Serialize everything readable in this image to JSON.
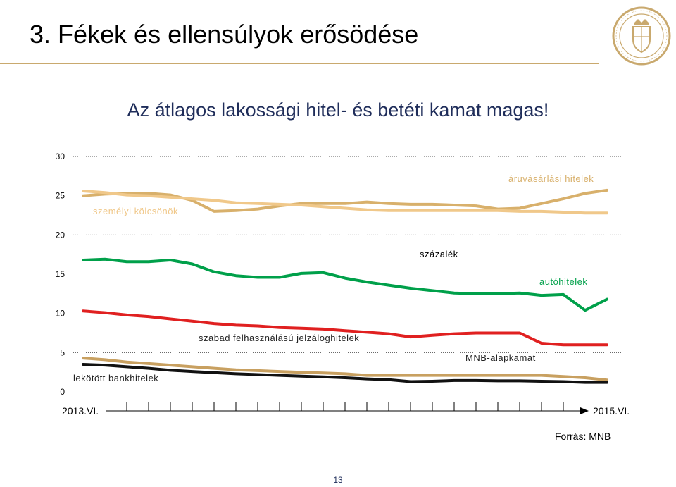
{
  "slide": {
    "title": "3. Fékek és ellensúlyok erősödése",
    "subtitle": "Az átlagos lakossági hitel- és betéti kamat magas!",
    "source": "Forrás: MNB",
    "page_number": "13"
  },
  "logo": {
    "icon": "mnb-seal-icon",
    "color": "#c9a96e"
  },
  "chart_data": {
    "type": "line",
    "ylim": [
      0,
      30
    ],
    "yticks": [
      0,
      5,
      10,
      15,
      20,
      25,
      30
    ],
    "y_unit_label": "százalék",
    "x_start_label": "2013.VI.",
    "x_end_label": "2015.VI.",
    "x_count": 25,
    "grid": "dotted at 5, 20, 30",
    "series": [
      {
        "name": "áruvásárlási hitelek",
        "color": "#d8b06b",
        "values": [
          25.0,
          25.2,
          25.3,
          25.3,
          25.1,
          24.4,
          23.0,
          23.1,
          23.3,
          23.7,
          24.0,
          24.0,
          24.0,
          24.2,
          24.0,
          23.9,
          23.9,
          23.8,
          23.7,
          23.3,
          23.4,
          24.0,
          24.6,
          25.3,
          25.7
        ]
      },
      {
        "name": "személyi kölcsönök",
        "color": "#f0c88a",
        "values": [
          25.6,
          25.4,
          25.1,
          25.0,
          24.8,
          24.6,
          24.4,
          24.1,
          24.0,
          23.9,
          23.8,
          23.6,
          23.4,
          23.2,
          23.1,
          23.1,
          23.1,
          23.1,
          23.1,
          23.1,
          23.0,
          23.0,
          22.9,
          22.8,
          22.8
        ]
      },
      {
        "name": "autóhitelek",
        "color": "#00a04a",
        "values": [
          16.8,
          16.9,
          16.6,
          16.6,
          16.8,
          16.3,
          15.3,
          14.8,
          14.6,
          14.6,
          15.1,
          15.2,
          14.5,
          14.0,
          13.6,
          13.2,
          12.9,
          12.6,
          12.5,
          12.5,
          12.6,
          12.3,
          12.4,
          10.4,
          11.8
        ]
      },
      {
        "name": "szabad felhasználású jelzáloghitelek",
        "color": "#e02020",
        "values": [
          10.3,
          10.1,
          9.8,
          9.6,
          9.3,
          9.0,
          8.7,
          8.5,
          8.4,
          8.2,
          8.1,
          8.0,
          7.8,
          7.6,
          7.4,
          7.0,
          7.2,
          7.4,
          7.5,
          7.5,
          7.5,
          6.2,
          6.0,
          6.0,
          6.0
        ]
      },
      {
        "name": "MNB-alapkamat",
        "color": "#c8a060",
        "values": [
          4.3,
          4.1,
          3.8,
          3.6,
          3.4,
          3.2,
          3.0,
          2.8,
          2.7,
          2.6,
          2.5,
          2.4,
          2.3,
          2.1,
          2.1,
          2.1,
          2.1,
          2.1,
          2.1,
          2.1,
          2.1,
          2.1,
          1.95,
          1.8,
          1.5
        ]
      },
      {
        "name": "lekötött bankhitelek",
        "color": "#111111",
        "values": [
          3.5,
          3.4,
          3.2,
          3.0,
          2.75,
          2.6,
          2.45,
          2.3,
          2.2,
          2.1,
          2.0,
          1.9,
          1.8,
          1.65,
          1.55,
          1.3,
          1.35,
          1.45,
          1.45,
          1.4,
          1.4,
          1.35,
          1.3,
          1.2,
          1.2
        ]
      }
    ]
  }
}
